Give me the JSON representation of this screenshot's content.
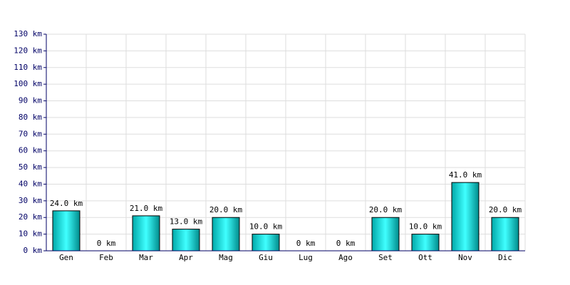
{
  "chart_data": {
    "type": "bar",
    "categories": [
      "Gen",
      "Feb",
      "Mar",
      "Apr",
      "Mag",
      "Giu",
      "Lug",
      "Ago",
      "Set",
      "Ott",
      "Nov",
      "Dic"
    ],
    "values": [
      24,
      0,
      21,
      13,
      20,
      10,
      0,
      0,
      20,
      10,
      41,
      20
    ],
    "value_labels": [
      "24.0 km",
      "0 km",
      "21.0 km",
      "13.0 km",
      "20.0 km",
      "10.0 km",
      "0 km",
      "0 km",
      "20.0 km",
      "10.0 km",
      "41.0 km",
      "20.0 km"
    ],
    "color": "#00c8c8",
    "ylim": [
      0,
      130
    ],
    "yticks": [
      {
        "value": 0,
        "label": "0 km"
      },
      {
        "value": 10,
        "label": "10 km"
      },
      {
        "value": 20,
        "label": "20 km"
      },
      {
        "value": 30,
        "label": "30 km"
      },
      {
        "value": 40,
        "label": "40 km"
      },
      {
        "value": 50,
        "label": "50 km"
      },
      {
        "value": 60,
        "label": "60 km"
      },
      {
        "value": 70,
        "label": "70 km"
      },
      {
        "value": 80,
        "label": "80 km"
      },
      {
        "value": 90,
        "label": "90 km"
      },
      {
        "value": 100,
        "label": "100 km"
      },
      {
        "value": 110,
        "label": "110 km"
      },
      {
        "value": 120,
        "label": "120 km"
      },
      {
        "value": 130,
        "label": "130 km"
      }
    ],
    "grid": true
  }
}
